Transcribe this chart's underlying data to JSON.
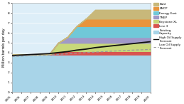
{
  "years": [
    2005,
    2006,
    2007,
    2008,
    2009,
    2010,
    2011,
    2012,
    2013,
    2014,
    2015,
    2016,
    2017,
    2018,
    2019,
    2020
  ],
  "existing_capacity": [
    3.8,
    3.8,
    3.8,
    3.8,
    3.8,
    3.8,
    3.8,
    3.8,
    3.8,
    3.8,
    3.8,
    3.8,
    3.8,
    3.8,
    3.8,
    3.8
  ],
  "line3": [
    0.0,
    0.0,
    0.0,
    0.0,
    0.0,
    0.35,
    0.35,
    0.35,
    0.35,
    0.35,
    0.35,
    0.35,
    0.35,
    0.35,
    0.35,
    0.35
  ],
  "keystone_xl": [
    0.0,
    0.0,
    0.0,
    0.0,
    0.0,
    0.83,
    0.83,
    0.83,
    0.83,
    0.83,
    0.83,
    0.83,
    0.83,
    0.83,
    0.83,
    0.83
  ],
  "tmep": [
    0.0,
    0.0,
    0.0,
    0.0,
    0.0,
    0.0,
    0.59,
    0.59,
    0.59,
    0.59,
    0.59,
    0.59,
    0.59,
    0.59,
    0.59,
    0.59
  ],
  "energy_east": [
    0.0,
    0.0,
    0.0,
    0.0,
    0.0,
    0.0,
    0.0,
    1.1,
    1.1,
    1.1,
    1.1,
    1.1,
    1.1,
    1.1,
    1.1,
    1.1
  ],
  "emcp": [
    0.0,
    0.0,
    0.0,
    0.0,
    0.0,
    0.0,
    0.0,
    0.0,
    0.75,
    0.75,
    0.75,
    0.75,
    0.75,
    0.75,
    0.75,
    0.75
  ],
  "bald": [
    0.0,
    0.0,
    0.0,
    0.0,
    0.0,
    0.0,
    0.0,
    0.0,
    0.0,
    0.9,
    0.9,
    0.9,
    0.9,
    0.9,
    0.9,
    0.9
  ],
  "high_supply": [
    3.7,
    3.75,
    3.8,
    3.85,
    3.9,
    4.0,
    4.1,
    4.25,
    4.35,
    4.5,
    4.6,
    4.7,
    4.8,
    4.9,
    5.0,
    5.1
  ],
  "low_supply": [
    3.6,
    3.65,
    3.7,
    3.72,
    3.75,
    3.82,
    3.88,
    3.95,
    4.0,
    4.05,
    4.1,
    4.15,
    4.2,
    4.25,
    4.28,
    4.32
  ],
  "ylim": [
    0,
    9
  ],
  "yticks": [
    0,
    1,
    2,
    3,
    4,
    5,
    6,
    7,
    8,
    9
  ],
  "ylabel": "Million barrels per day",
  "colors": {
    "existing_capacity": "#a8d4e8",
    "line3": "#d9534f",
    "keystone_xl": "#c8d87a",
    "tmep": "#a099c8",
    "energy_east": "#70c8d8",
    "emcp": "#e8943c",
    "bald": "#c8b87a",
    "high_supply": "#111111",
    "low_supply": "#999999"
  },
  "legend_labels": {
    "bald": "Bald",
    "emcp": "EMCP",
    "energy_east": "Energy East",
    "tmep": "TMEP",
    "keystone_xl": "Keystone XL",
    "line3": "Line 3",
    "existing_capacity": "Existing\nCapacity",
    "high_supply": "High Oil Supply\nForecast",
    "low_supply": "Low Oil Supply\nForecast"
  },
  "background_color": "#ffffff",
  "plot_bg": "#ddeef8"
}
